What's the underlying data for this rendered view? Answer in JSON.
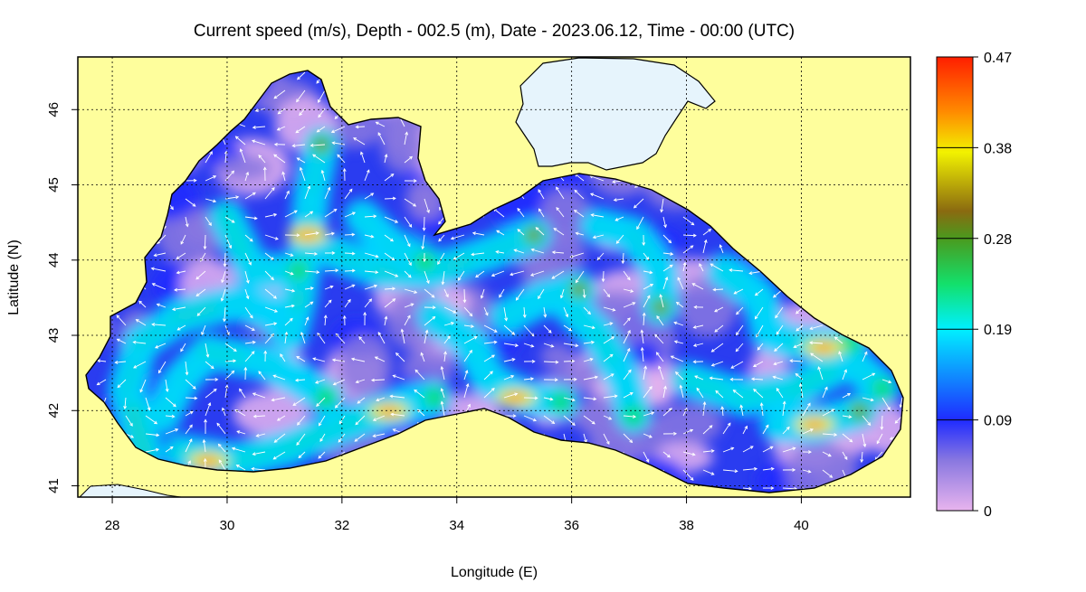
{
  "title": "Current speed (m/s), Depth - 002.5 (m), Date - 2023.06.12, Time - 00:00 (UTC)",
  "xlabel": "Longitude (E)",
  "ylabel": "Latitude (N)",
  "x_ticks": [
    "28",
    "30",
    "32",
    "34",
    "36",
    "38",
    "40"
  ],
  "y_ticks": [
    "41",
    "42",
    "43",
    "44",
    "45",
    "46"
  ],
  "colorbar": {
    "labels": [
      "0.47",
      "0.38",
      "0.28",
      "0.19",
      "0.09",
      "0"
    ],
    "min": 0,
    "max": 0.47,
    "stops": [
      "#e8b4ee",
      "#8a78e0",
      "#1f2bff",
      "#00d4ff",
      "#13e06b",
      "#6b9a1e",
      "#8a6a10",
      "#f2f200",
      "#ff8a00",
      "#ff1e00"
    ]
  },
  "map": {
    "lon_range": [
      27.4,
      41.9
    ],
    "lat_range": [
      40.85,
      46.7
    ],
    "land_color": "#fefe9c",
    "ice_color": "#e6f4fc",
    "grid": "dotted"
  }
}
